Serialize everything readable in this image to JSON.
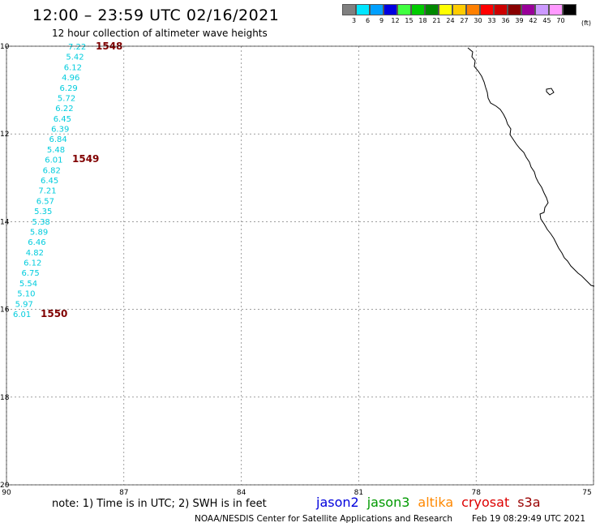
{
  "header": {
    "title": "12:00 – 23:59 UTC 02/16/2021",
    "subtitle": "12 hour collection of altimeter wave heights"
  },
  "color_scale": {
    "unit": "(ft)",
    "bins": [
      {
        "label": "3",
        "color": "#808080"
      },
      {
        "label": "6",
        "color": "#00e6ff"
      },
      {
        "label": "9",
        "color": "#00a0ff"
      },
      {
        "label": "12",
        "color": "#0000e0"
      },
      {
        "label": "15",
        "color": "#40ff40"
      },
      {
        "label": "18",
        "color": "#00cc00"
      },
      {
        "label": "21",
        "color": "#008800"
      },
      {
        "label": "24",
        "color": "#ffff00"
      },
      {
        "label": "27",
        "color": "#ffcc00"
      },
      {
        "label": "30",
        "color": "#ff8000"
      },
      {
        "label": "33",
        "color": "#ff0000"
      },
      {
        "label": "36",
        "color": "#cc0000"
      },
      {
        "label": "39",
        "color": "#880000"
      },
      {
        "label": "42",
        "color": "#990099"
      },
      {
        "label": "45",
        "color": "#cc99ff"
      },
      {
        "label": "70",
        "color": "#ff99ff"
      },
      {
        "label": "",
        "color": "#000000"
      }
    ]
  },
  "map": {
    "lat_labels": [
      "10",
      "12",
      "14",
      "16",
      "18",
      "20"
    ],
    "lon_labels": [
      "90",
      "87",
      "84",
      "81",
      "78",
      "75"
    ],
    "track_color": "#00ccdd",
    "time_color": "#800000",
    "wave_heights": [
      "7.22",
      "5.42",
      "6.12",
      "4.96",
      "6.29",
      "5.72",
      "6.22",
      "6.45",
      "6.39",
      "6.84",
      "5.48",
      "6.01",
      "6.82",
      "6.45",
      "7.21",
      "6.57",
      "5.35",
      "5.38",
      "5.89",
      "6.46",
      "4.82",
      "6.12",
      "6.75",
      "5.54",
      "5.10",
      "5.97",
      "6.01"
    ],
    "time_labels": [
      "1548",
      "1549",
      "1550"
    ]
  },
  "footer": {
    "note": "note:  1) Time is in UTC;  2) SWH is in feet",
    "satellites": [
      {
        "name": "jason2",
        "color": "#0000dd"
      },
      {
        "name": "jason3",
        "color": "#009900"
      },
      {
        "name": "altika",
        "color": "#ff8800"
      },
      {
        "name": "cryosat",
        "color": "#dd0000"
      },
      {
        "name": "s3a",
        "color": "#990000"
      }
    ],
    "credit": "NOAA/NESDIS Center for Satellite Applications and Research",
    "updated": "Feb 19 08:29:49 UTC 2021"
  }
}
